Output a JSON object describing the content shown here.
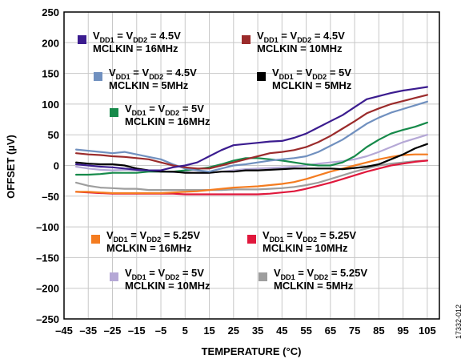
{
  "chart_data": {
    "type": "line",
    "xlabel": "TEMPERATURE (°C)",
    "ylabel": "OFFSET (µV)",
    "xlim": [
      -45,
      110
    ],
    "ylim": [
      -250,
      250
    ],
    "x_ticks": [
      "–45",
      "–35",
      "–25",
      "–15",
      "–5",
      "5",
      "15",
      "25",
      "35",
      "45",
      "55",
      "65",
      "75",
      "85",
      "95",
      "105"
    ],
    "y_ticks": [
      "250",
      "200",
      "150",
      "100",
      "50",
      "0",
      "–50",
      "–100",
      "–150",
      "–200",
      "–250"
    ],
    "grid": true,
    "figure_id": "17332-012",
    "series": [
      {
        "id": "s1",
        "color": "#3B1C8F",
        "legend": {
          "l1_a": "V",
          "l1_b": "DD1",
          "l1_c": " = V",
          "l1_d": "DD2",
          "l1_e": " = 4.5V",
          "l2": "MCLKIN = 16MHz"
        },
        "x": [
          -40,
          -35,
          -30,
          -25,
          -20,
          -15,
          -10,
          -5,
          0,
          5,
          10,
          15,
          20,
          25,
          30,
          35,
          40,
          45,
          50,
          55,
          60,
          65,
          70,
          75,
          80,
          85,
          90,
          95,
          100,
          105
        ],
        "y": [
          2,
          0,
          -2,
          -3,
          -5,
          -7,
          -8,
          -8,
          -3,
          0,
          5,
          15,
          25,
          33,
          35,
          37,
          39,
          40,
          45,
          52,
          62,
          72,
          82,
          95,
          108,
          113,
          118,
          122,
          125,
          128
        ]
      },
      {
        "id": "s2",
        "color": "#9B2B2B",
        "legend": {
          "l1_a": "V",
          "l1_b": "DD1",
          "l1_c": " = V",
          "l1_d": "DD2",
          "l1_e": " = 4.5V",
          "l2": "MCLKIN = 10MHz"
        },
        "x": [
          -40,
          -35,
          -30,
          -25,
          -20,
          -15,
          -10,
          -5,
          0,
          5,
          10,
          15,
          20,
          25,
          30,
          35,
          40,
          45,
          50,
          55,
          60,
          65,
          70,
          75,
          80,
          85,
          90,
          95,
          100,
          105
        ],
        "y": [
          20,
          18,
          17,
          15,
          14,
          12,
          10,
          5,
          0,
          -3,
          -5,
          -5,
          0,
          5,
          10,
          15,
          20,
          22,
          25,
          30,
          38,
          48,
          60,
          72,
          85,
          93,
          100,
          105,
          110,
          115
        ]
      },
      {
        "id": "s3",
        "color": "#7090BF",
        "legend": {
          "l1_a": "V",
          "l1_b": "DD1",
          "l1_c": " = V",
          "l1_d": "DD2",
          "l1_e": " = 4.5V",
          "l2": "MCLKIN = 5MHz"
        },
        "x": [
          -40,
          -35,
          -30,
          -25,
          -20,
          -15,
          -10,
          -5,
          0,
          5,
          10,
          15,
          20,
          25,
          30,
          35,
          40,
          45,
          50,
          55,
          60,
          65,
          70,
          75,
          80,
          85,
          90,
          95,
          100,
          105
        ],
        "y": [
          26,
          24,
          22,
          20,
          22,
          18,
          14,
          10,
          2,
          -5,
          -8,
          -10,
          -5,
          0,
          2,
          5,
          8,
          10,
          12,
          15,
          22,
          32,
          42,
          55,
          68,
          78,
          86,
          92,
          98,
          104
        ]
      },
      {
        "id": "s4",
        "color": "#000000",
        "legend": {
          "l1_a": "V",
          "l1_b": "DD1",
          "l1_c": " = V",
          "l1_d": "DD2",
          "l1_e": " = 5V",
          "l2": "MCLKIN = 5MHz"
        },
        "x": [
          -40,
          -35,
          -30,
          -25,
          -20,
          -15,
          -10,
          -5,
          0,
          5,
          10,
          15,
          20,
          25,
          30,
          35,
          40,
          45,
          50,
          55,
          60,
          65,
          70,
          75,
          80,
          85,
          90,
          95,
          100,
          105
        ],
        "y": [
          5,
          3,
          2,
          2,
          0,
          -5,
          -8,
          -10,
          -10,
          -12,
          -12,
          -12,
          -10,
          -10,
          -8,
          -8,
          -7,
          -6,
          -5,
          -5,
          -5,
          -5,
          -6,
          -4,
          -2,
          2,
          10,
          18,
          28,
          35
        ]
      },
      {
        "id": "s5",
        "color": "#168A4A",
        "legend": {
          "l1_a": "V",
          "l1_b": "DD1",
          "l1_c": " = V",
          "l1_d": "DD2",
          "l1_e": " = 5V",
          "l2": "MCLKIN = 16MHz"
        },
        "x": [
          -40,
          -35,
          -30,
          -25,
          -20,
          -15,
          -10,
          -5,
          0,
          5,
          10,
          15,
          20,
          25,
          30,
          35,
          40,
          45,
          50,
          55,
          60,
          65,
          70,
          75,
          80,
          85,
          90,
          95,
          100,
          105
        ],
        "y": [
          -15,
          -15,
          -14,
          -12,
          -12,
          -12,
          -10,
          -10,
          -10,
          -8,
          -6,
          -3,
          2,
          8,
          12,
          12,
          10,
          8,
          5,
          2,
          0,
          0,
          5,
          15,
          30,
          42,
          52,
          58,
          63,
          70
        ]
      },
      {
        "id": "s6",
        "color": "#F47C20",
        "legend": {
          "l1_a": "V",
          "l1_b": "DD1",
          "l1_c": " = V",
          "l1_d": "DD2",
          "l1_e": " = 5.25V",
          "l2": "MCLKIN = 16MHz"
        },
        "x": [
          -40,
          -35,
          -30,
          -25,
          -20,
          -15,
          -10,
          -5,
          0,
          5,
          10,
          15,
          20,
          25,
          30,
          35,
          40,
          45,
          50,
          55,
          60,
          65,
          70,
          75,
          80,
          85,
          90,
          95,
          100,
          105
        ],
        "y": [
          -43,
          -43,
          -44,
          -45,
          -45,
          -45,
          -45,
          -45,
          -44,
          -43,
          -42,
          -40,
          -38,
          -36,
          -35,
          -34,
          -32,
          -30,
          -27,
          -22,
          -16,
          -10,
          -5,
          0,
          5,
          10,
          14,
          17,
          18,
          18
        ]
      },
      {
        "id": "s7",
        "color": "#E0183C",
        "legend": {
          "l1_a": "V",
          "l1_b": "DD1",
          "l1_c": " = V",
          "l1_d": "DD2",
          "l1_e": " = 5.25V",
          "l2": "MCLKIN = 10MHz"
        },
        "x": [
          -40,
          -35,
          -30,
          -25,
          -20,
          -15,
          -10,
          -5,
          0,
          5,
          10,
          15,
          20,
          25,
          30,
          35,
          40,
          45,
          50,
          55,
          60,
          65,
          70,
          75,
          80,
          85,
          90,
          95,
          100,
          105
        ],
        "y": [
          -43,
          -44,
          -45,
          -46,
          -46,
          -46,
          -46,
          -46,
          -46,
          -47,
          -47,
          -47,
          -47,
          -47,
          -47,
          -47,
          -46,
          -44,
          -42,
          -38,
          -33,
          -28,
          -22,
          -16,
          -10,
          -5,
          0,
          3,
          6,
          8
        ]
      },
      {
        "id": "s8",
        "color": "#B5A8D6",
        "legend": {
          "l1_a": "V",
          "l1_b": "DD1",
          "l1_c": " = V",
          "l1_d": "DD2",
          "l1_e": " = 5V",
          "l2": "MCLKIN = 10MHz"
        },
        "x": [
          -40,
          -35,
          -30,
          -25,
          -20,
          -15,
          -10,
          -5,
          0,
          5,
          10,
          15,
          20,
          25,
          30,
          35,
          40,
          45,
          50,
          55,
          60,
          65,
          70,
          75,
          80,
          85,
          90,
          95,
          100,
          105
        ],
        "y": [
          -2,
          -5,
          -7,
          -8,
          -7,
          -8,
          -10,
          -10,
          -11,
          -11,
          -12,
          -12,
          -10,
          -8,
          -6,
          -5,
          -4,
          -3,
          -2,
          0,
          3,
          5,
          7,
          10,
          15,
          22,
          30,
          38,
          44,
          50
        ]
      },
      {
        "id": "s9",
        "color": "#9E9E9E",
        "legend": {
          "l1_a": "V",
          "l1_b": "DD1",
          "l1_c": " = V",
          "l1_d": "DD2",
          "l1_e": " = 5.25V",
          "l2": "MCLKIN = 5MHz"
        },
        "x": [
          -40,
          -35,
          -30,
          -25,
          -20,
          -15,
          -10,
          -5,
          0,
          5,
          10,
          15,
          20,
          25,
          30,
          35,
          40,
          45,
          50,
          55,
          60,
          65,
          70,
          75,
          80,
          85,
          90,
          95,
          100,
          105
        ],
        "y": [
          -28,
          -33,
          -36,
          -37,
          -38,
          -38,
          -40,
          -40,
          -40,
          -40,
          -40,
          -40,
          -40,
          -39,
          -39,
          -39,
          -38,
          -37,
          -35,
          -32,
          -28,
          -22,
          -16,
          -10,
          -5,
          0,
          3,
          5,
          7,
          8
        ]
      }
    ]
  }
}
